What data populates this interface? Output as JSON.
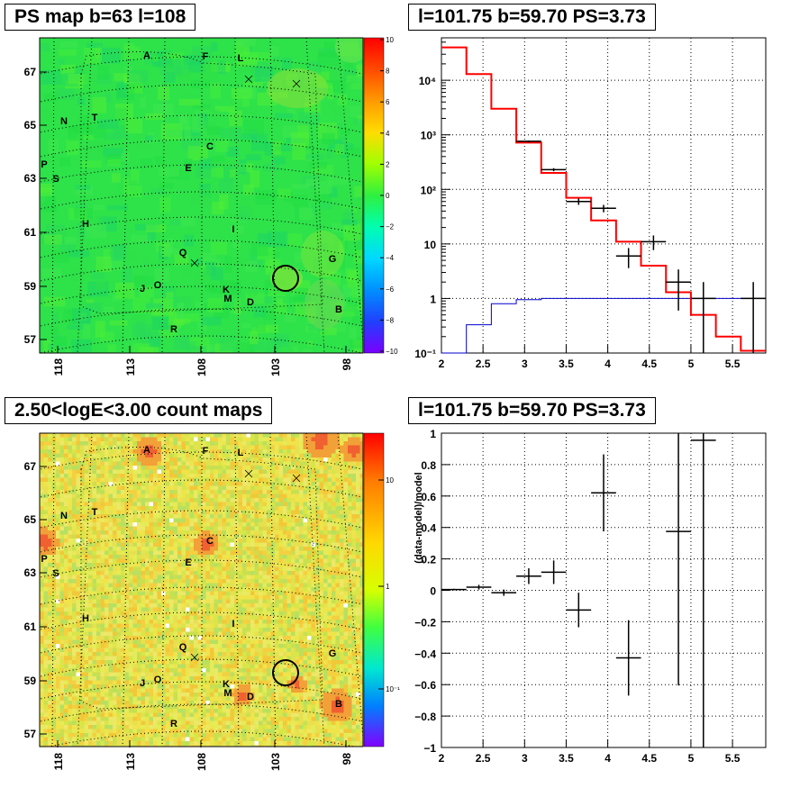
{
  "titles": {
    "ps_map": "PS map b=63 l=108",
    "spectrum": "l=101.75 b=59.70 PS=3.73",
    "count_map": "2.50<logE<3.00 count maps",
    "residual": "l=101.75 b=59.70 PS=3.73"
  },
  "chart_data": [
    {
      "type": "heatmap",
      "title": "PS map b=63 l=108",
      "x_tick_labels": [
        "118",
        "113",
        "108",
        "103",
        "98"
      ],
      "y_tick_labels": [
        "67",
        "65",
        "63",
        "61",
        "59",
        "57"
      ],
      "colorbar": {
        "ticks": [
          "10",
          "8",
          "6",
          "4",
          "2",
          "0",
          "−2",
          "−4",
          "−6",
          "−8",
          "−10"
        ],
        "range": [
          -10,
          10
        ]
      },
      "source_labels": [
        "A",
        "F",
        "L",
        "N",
        "T",
        "C",
        "P",
        "S",
        "E",
        "H",
        "I",
        "Q",
        "G",
        "J",
        "O",
        "K",
        "M",
        "D",
        "B",
        "R"
      ],
      "grid": true
    },
    {
      "type": "line",
      "title": "l=101.75 b=59.70 PS=3.73",
      "y_scale": "log",
      "xlim": [
        2,
        5.9
      ],
      "ylim": [
        0.1,
        60000
      ],
      "x_tick_labels": [
        "2",
        "2.5",
        "3",
        "3.5",
        "4",
        "4.5",
        "5",
        "5.5"
      ],
      "y_tick_labels": [
        "10⁻¹",
        "1",
        "10",
        "10²",
        "10³",
        "10⁴"
      ],
      "grid": true,
      "data_points": [
        {
          "x": 3.05,
          "y": 760,
          "xerr": 0.15,
          "yerr_lo": 28,
          "yerr_hi": 28
        },
        {
          "x": 3.35,
          "y": 230,
          "xerr": 0.15,
          "yerr_lo": 15,
          "yerr_hi": 15
        },
        {
          "x": 3.65,
          "y": 60,
          "xerr": 0.15,
          "yerr_lo": 8,
          "yerr_hi": 8
        },
        {
          "x": 3.95,
          "y": 45,
          "xerr": 0.15,
          "yerr_lo": 7,
          "yerr_hi": 7
        },
        {
          "x": 4.25,
          "y": 6,
          "xerr": 0.15,
          "yerr_lo": 2.4,
          "yerr_hi": 2.4
        },
        {
          "x": 4.55,
          "y": 11,
          "xerr": 0.15,
          "yerr_lo": 3.3,
          "yerr_hi": 3.3
        },
        {
          "x": 4.85,
          "y": 2,
          "xerr": 0.15,
          "yerr_lo": 1.4,
          "yerr_hi": 1.4
        },
        {
          "x": 5.15,
          "y": 1,
          "xerr": 0.15,
          "yerr_lo": 0.9,
          "yerr_hi": 1.0
        },
        {
          "x": 5.75,
          "y": 1,
          "xerr": 0.15,
          "yerr_lo": 0.9,
          "yerr_hi": 1.0
        }
      ],
      "model_bins": {
        "edges": [
          2.0,
          2.3,
          2.6,
          2.9,
          3.2,
          3.5,
          3.8,
          4.1,
          4.4,
          4.7,
          5.0,
          5.3,
          5.6,
          5.9
        ],
        "values": [
          40000,
          13000,
          3000,
          720,
          200,
          70,
          27,
          11,
          4,
          1.3,
          0.5,
          0.2,
          0.11
        ]
      },
      "background_bins": {
        "edges": [
          2.0,
          2.3,
          2.6,
          2.9,
          3.2,
          3.5,
          3.8,
          4.1,
          4.4,
          4.7,
          5.0,
          5.3,
          5.6,
          5.9
        ],
        "values": [
          0.1,
          0.33,
          0.8,
          0.95,
          1.0,
          1.0,
          1.0,
          1.0,
          1.0,
          1.0,
          1.0,
          1.0,
          1.0
        ]
      },
      "colors": {
        "data": "#000000",
        "model": "#ff0000",
        "background": "#0000cc"
      }
    },
    {
      "type": "heatmap",
      "title": "2.50<logE<3.00 count maps",
      "x_tick_labels": [
        "118",
        "113",
        "108",
        "103",
        "98"
      ],
      "y_tick_labels": [
        "67",
        "65",
        "63",
        "61",
        "59",
        "57"
      ],
      "colorbar": {
        "ticks": [
          "10",
          "1",
          "10⁻¹"
        ],
        "scale": "log"
      },
      "source_labels": [
        "A",
        "F",
        "L",
        "N",
        "T",
        "C",
        "P",
        "S",
        "E",
        "H",
        "I",
        "Q",
        "G",
        "J",
        "O",
        "K",
        "M",
        "D",
        "B",
        "R"
      ],
      "grid": true
    },
    {
      "type": "scatter",
      "title": "l=101.75 b=59.70 PS=3.73",
      "ylabel": "(data-model)/model",
      "xlim": [
        2,
        5.9
      ],
      "ylim": [
        -1,
        1
      ],
      "x_tick_labels": [
        "2",
        "2.5",
        "3",
        "3.5",
        "4",
        "4.5",
        "5",
        "5.5"
      ],
      "y_tick_labels": [
        "1",
        "0.8",
        "0.6",
        "0.4",
        "0.2",
        "0",
        "−0.2",
        "−0.4",
        "−0.6",
        "−0.8",
        "−1"
      ],
      "grid": true,
      "points": [
        {
          "x": 2.15,
          "y": 0.005,
          "xerr": 0.15,
          "yerr": 0.005
        },
        {
          "x": 2.45,
          "y": 0.02,
          "xerr": 0.15,
          "yerr": 0.015
        },
        {
          "x": 2.75,
          "y": -0.015,
          "xerr": 0.15,
          "yerr": 0.02
        },
        {
          "x": 3.05,
          "y": 0.09,
          "xerr": 0.15,
          "yerr": 0.05
        },
        {
          "x": 3.35,
          "y": 0.115,
          "xerr": 0.15,
          "yerr": 0.075
        },
        {
          "x": 3.65,
          "y": -0.125,
          "xerr": 0.15,
          "yerr": 0.11
        },
        {
          "x": 3.95,
          "y": 0.62,
          "xerr": 0.15,
          "yerr": 0.245
        },
        {
          "x": 4.25,
          "y": -0.43,
          "xerr": 0.15,
          "yerr": 0.24
        },
        {
          "x": 4.85,
          "y": 0.375,
          "xerr": 0.15,
          "yerr": 0.98
        },
        {
          "x": 5.15,
          "y": 0.955,
          "xerr": 0.15,
          "yerr": 2.0
        }
      ]
    }
  ]
}
